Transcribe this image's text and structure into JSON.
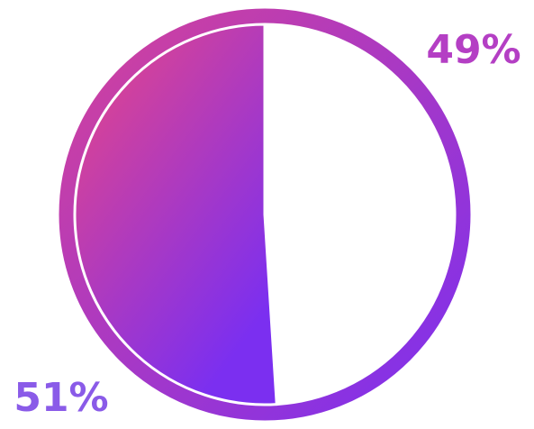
{
  "chart_data": {
    "type": "pie",
    "title": "",
    "slices": [
      {
        "label": "49%",
        "value": 49,
        "color": "#ffffff"
      },
      {
        "label": "51%",
        "value": 51,
        "color": "gradient"
      }
    ],
    "legend": "none",
    "grid": false
  },
  "colors": {
    "gradient_start": "#d4429a",
    "gradient_end": "#7b2ff0",
    "label_49": "#b43fc4",
    "label_51": "#8a5be8",
    "slice_divider": "#ffffff"
  }
}
